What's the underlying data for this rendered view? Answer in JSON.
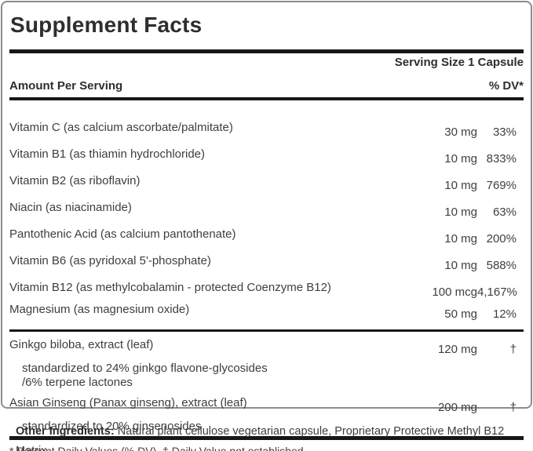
{
  "label": {
    "title": "Supplement Facts",
    "serving_size": "Serving Size 1 Capsule",
    "amount_header": "Amount Per Serving",
    "dv_header": "% DV*",
    "rows": [
      {
        "name": "Vitamin C (as calcium ascorbate/palmitate)",
        "amount": "30 mg",
        "dv": "33%"
      },
      {
        "name": "Vitamin B1 (as thiamin hydrochloride)",
        "amount": "10 mg",
        "dv": "833%"
      },
      {
        "name": "Vitamin B2 (as riboflavin)",
        "amount": "10 mg",
        "dv": "769%"
      },
      {
        "name": "Niacin (as niacinamide)",
        "amount": "10 mg",
        "dv": "63%"
      },
      {
        "name": "Pantothenic Acid (as calcium pantothenate)",
        "amount": "10 mg",
        "dv": "200%"
      },
      {
        "name": "Vitamin B6 (as pyridoxal 5'-phosphate)",
        "amount": "10 mg",
        "dv": "588%"
      },
      {
        "name": "Vitamin B12 (as methylcobalamin - protected Coenzyme B12)",
        "amount": "100 mcg",
        "dv": "4,167%"
      },
      {
        "name": "Magnesium (as magnesium oxide)",
        "amount": "50 mg",
        "dv": "12%"
      },
      {
        "name": "Ginkgo biloba, extract (leaf)",
        "amount": "120 mg",
        "dv": "†",
        "notes": [
          "standardized to 24% ginkgo flavone-glycosides",
          "/6% terpene lactones"
        ]
      },
      {
        "name": "Asian Ginseng (Panax ginseng), extract (leaf)",
        "amount": "200 mg",
        "dv": "†",
        "notes": [
          "standardized to 20% ginsenosides"
        ]
      }
    ],
    "footnote": "* Percent Daily Values (% DV). † Daily Value not established."
  },
  "other_ingredients": {
    "label": "Other Ingredients:",
    "text": "Natural plant cellulose vegetarian capsule, Proprietary Protective Methyl B12 Matrix."
  },
  "colors": {
    "rule": "#171717",
    "border": "#8c8c8c",
    "text": "#3e3e3e",
    "strong": "#2e2e2e"
  }
}
